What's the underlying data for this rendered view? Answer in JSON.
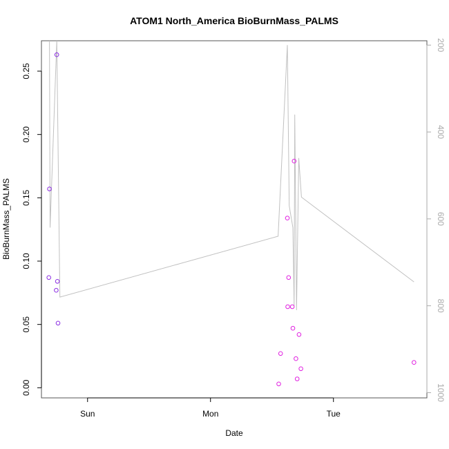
{
  "chart_data": {
    "type": "scatter",
    "title": "ATOM1 North_America BioBurnMass_PALMS",
    "xlabel": "Date",
    "ylabel": "BioBurnMass_PALMS",
    "x_ticks": [
      "Sun",
      "Mon",
      "Tue"
    ],
    "x_tick_days": [
      1,
      2,
      3
    ],
    "xlim_days": [
      0.625,
      3.76
    ],
    "ylim": [
      -0.008,
      0.274
    ],
    "y_ticks": [
      0.0,
      0.05,
      0.1,
      0.15,
      0.2,
      0.25
    ],
    "y_tick_labels": [
      "0.00",
      "0.05",
      "0.10",
      "0.15",
      "0.20",
      "0.25"
    ],
    "y2_reversed": true,
    "y2lim": [
      1012,
      190
    ],
    "y2_ticks": [
      200,
      400,
      600,
      800,
      1000
    ],
    "y2_tick_labels": [
      "200",
      "400",
      "600",
      "800",
      "1000"
    ],
    "grid": false,
    "legend": "none",
    "colors": {
      "points_early": "#8a2be2",
      "points_late": "#e020e0",
      "line": "#c0c0c0",
      "axis": "#000000",
      "right_axis": "#aaaaaa"
    },
    "series": [
      {
        "type": "points",
        "points": [
          {
            "t": 0.685,
            "y": 0.087
          },
          {
            "t": 0.69,
            "y": 0.157
          },
          {
            "t": 0.745,
            "y": 0.077
          },
          {
            "t": 0.75,
            "y": 0.263
          },
          {
            "t": 0.755,
            "y": 0.084
          },
          {
            "t": 0.76,
            "y": 0.051
          },
          {
            "t": 2.555,
            "y": 0.003
          },
          {
            "t": 2.57,
            "y": 0.027
          },
          {
            "t": 2.625,
            "y": 0.134
          },
          {
            "t": 2.628,
            "y": 0.064
          },
          {
            "t": 2.635,
            "y": 0.087
          },
          {
            "t": 2.665,
            "y": 0.064
          },
          {
            "t": 2.67,
            "y": 0.047
          },
          {
            "t": 2.68,
            "y": 0.179
          },
          {
            "t": 2.695,
            "y": 0.023
          },
          {
            "t": 2.705,
            "y": 0.007
          },
          {
            "t": 2.72,
            "y": 0.042
          },
          {
            "t": 2.735,
            "y": 0.015
          },
          {
            "t": 3.655,
            "y": 0.02
          }
        ]
      },
      {
        "type": "line",
        "axis": "right",
        "points": [
          {
            "t": 0.69,
            "p": 190
          },
          {
            "t": 0.695,
            "p": 620
          },
          {
            "t": 0.75,
            "p": 190
          },
          {
            "t": 0.775,
            "p": 780
          },
          {
            "t": 2.55,
            "p": 640
          },
          {
            "t": 2.625,
            "p": 200
          },
          {
            "t": 2.64,
            "p": 570
          },
          {
            "t": 2.67,
            "p": 620
          },
          {
            "t": 2.68,
            "p": 800
          },
          {
            "t": 2.685,
            "p": 360
          },
          {
            "t": 2.7,
            "p": 810
          },
          {
            "t": 2.718,
            "p": 460
          },
          {
            "t": 2.74,
            "p": 550
          },
          {
            "t": 3.655,
            "p": 745
          }
        ]
      }
    ]
  }
}
